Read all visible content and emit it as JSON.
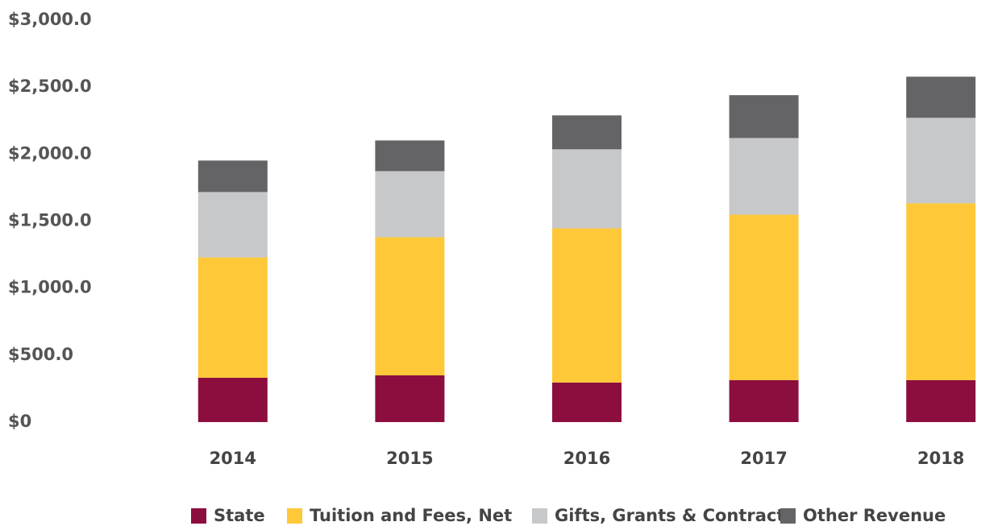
{
  "chart_data": {
    "type": "stacked-bar",
    "categories": [
      "2014",
      "2015",
      "2016",
      "2017",
      "2018"
    ],
    "series": [
      {
        "name": "State",
        "color": "#8c0e3f",
        "values": [
          331,
          349,
          295,
          313,
          313
        ]
      },
      {
        "name": "Tuition and Fees, Net",
        "color": "#ffc838",
        "values": [
          898,
          1031,
          1151,
          1235,
          1320
        ]
      },
      {
        "name": "Gifts, Grants & Contracts",
        "color": "#c7c8ca",
        "values": [
          488,
          493,
          590,
          572,
          638
        ]
      },
      {
        "name": "Other Revenue",
        "color": "#646466",
        "values": [
          235,
          229,
          253,
          320,
          307
        ]
      }
    ],
    "ylim": [
      0,
      3000
    ],
    "yticks": [
      {
        "value": 0,
        "label": "$0"
      },
      {
        "value": 500,
        "label": "$500.0"
      },
      {
        "value": 1000,
        "label": "$1,000.0"
      },
      {
        "value": 1500,
        "label": "$1,500.0"
      },
      {
        "value": 2000,
        "label": "$2,000.0"
      },
      {
        "value": 2500,
        "label": "$2,500.0"
      },
      {
        "value": 3000,
        "label": "$3,000.0"
      }
    ],
    "grid": false,
    "legend": "bottom"
  }
}
